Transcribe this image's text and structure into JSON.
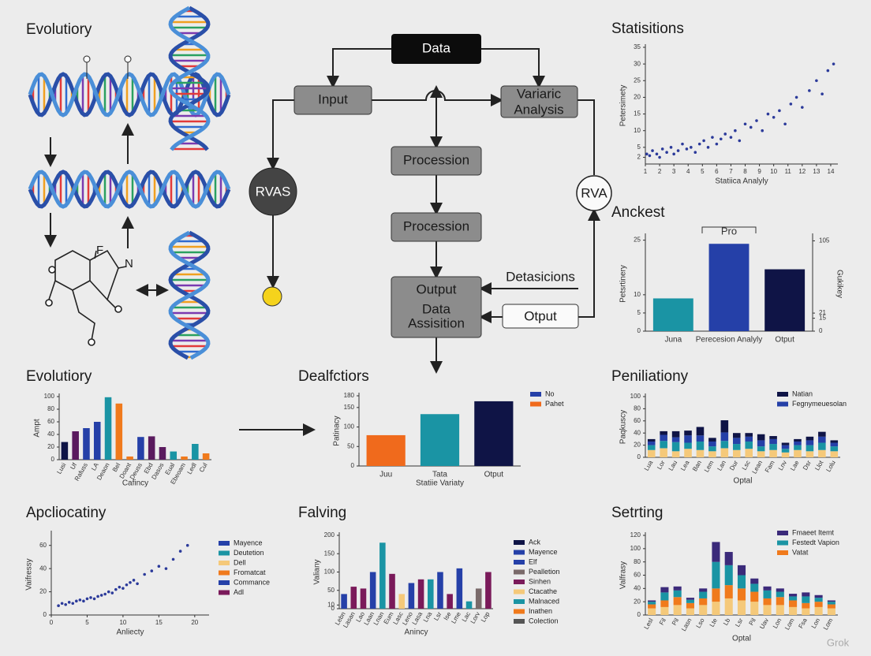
{
  "diagram": {
    "title": "Evolutiory",
    "atoms": [
      "F",
      "N"
    ],
    "nodes": [
      "Data",
      "Input",
      [
        "Variaric",
        "Analysis"
      ],
      "Procession",
      "Procession",
      [
        "Output",
        "Data",
        "Assisition"
      ],
      "Detasicions",
      "Otput",
      "RVAS",
      "RVA"
    ],
    "watermark": "Grok"
  },
  "chart_data": [
    {
      "type": "scatter",
      "title": "Statisitions",
      "x_label": "Statiica Analyly",
      "y_label": "Petersimety",
      "color": "#2b3a9a",
      "x": [
        1.1,
        1.3,
        1.5,
        1.8,
        2.0,
        2.2,
        2.5,
        2.8,
        3.0,
        3.3,
        3.6,
        3.9,
        4.2,
        4.5,
        4.8,
        5.1,
        5.4,
        5.7,
        6.0,
        6.3,
        6.6,
        7.0,
        7.3,
        7.6,
        8.0,
        8.4,
        8.8,
        9.2,
        9.6,
        10.0,
        10.4,
        10.8,
        11.2,
        11.6,
        12.0,
        12.5,
        13.0,
        13.4,
        13.8,
        14.2
      ],
      "values": [
        3,
        2.5,
        4,
        3,
        2,
        4.5,
        3.5,
        5,
        3,
        4,
        6,
        4.5,
        5,
        3.5,
        6,
        7,
        5,
        8,
        6,
        7.5,
        9,
        8,
        10,
        7,
        12,
        11,
        13,
        10,
        15,
        14,
        16,
        12,
        18,
        20,
        17,
        22,
        25,
        21,
        28,
        30
      ],
      "xlim": [
        1,
        14.5
      ],
      "xticks": [
        1,
        2,
        3,
        4,
        5,
        6,
        7,
        8,
        9,
        10,
        11,
        12,
        13,
        14
      ],
      "ylim": [
        0,
        35
      ],
      "yticks": [
        2,
        5,
        10,
        15,
        20,
        25,
        30,
        35
      ]
    },
    {
      "type": "bar",
      "title": "Anckest",
      "y_label": "Petsrtinery",
      "y2_label": "Gukikey",
      "annotation": "Pro",
      "categories": [
        "Juna",
        "Perecesion Analyly",
        "Otput"
      ],
      "values": [
        9,
        24,
        17
      ],
      "colors": [
        "#1a94a4",
        "#2540a8",
        "#0f1446"
      ],
      "ylim": [
        0,
        26
      ],
      "yticks": [
        0,
        5,
        10,
        25
      ],
      "y2lim": [
        0,
        110
      ],
      "y2ticks": [
        0,
        15,
        21,
        105
      ]
    },
    {
      "type": "bar",
      "title": "Evolutiory",
      "x_label": "Cafincy",
      "y_label": "Ampt",
      "categories": [
        "Lusi",
        "Uf",
        "Rafuss",
        "LA",
        "Deaon",
        "Bel",
        "Doant",
        "Deuss",
        "Ebd",
        "Dasos",
        "Eual",
        "Ebeoam",
        "Ledl",
        "Cul"
      ],
      "values": [
        28,
        45,
        50,
        60,
        99,
        89,
        5,
        36,
        37,
        20,
        13,
        5,
        25,
        10
      ],
      "colors": [
        "#0f1446",
        "#5a1a5e",
        "#2540a8",
        "#2540a8",
        "#1a94a4",
        "#f07a1c",
        "#f07a1c",
        "#2540a8",
        "#5a1a5e",
        "#5a1a5e",
        "#1a94a4",
        "#f07a1c",
        "#1a94a4",
        "#f07a1c"
      ],
      "ylim": [
        0,
        100
      ],
      "yticks": [
        0,
        20,
        40,
        60,
        80,
        100
      ]
    },
    {
      "type": "bar",
      "title": "Dealfctiors",
      "x_label": "Statiie Variaty",
      "y_label": "Patinacy",
      "categories": [
        "Juu",
        "Tata",
        "Otput"
      ],
      "values": [
        79,
        133,
        166
      ],
      "colors": [
        "#f06a1c",
        "#1a94a4",
        "#0f1446"
      ],
      "ylim": [
        0,
        180
      ],
      "yticks": [
        0,
        50,
        100,
        150,
        180
      ],
      "legend": [
        {
          "name": "No",
          "color": "#2540a8"
        },
        {
          "name": "Pahet",
          "color": "#f06a1c"
        }
      ]
    },
    {
      "type": "stacked_bar",
      "title": "Peniliationy",
      "x_label": "Optal",
      "y_label": "Paqkuscy",
      "categories": [
        "Lua",
        "Lor",
        "Lau",
        "Lea",
        "Ban",
        "Lem",
        "Lan",
        "Dur",
        "Lsc",
        "Lean",
        "Fam",
        "Lnv",
        "Lae",
        "Dsr",
        "Llot",
        "Lolu"
      ],
      "series": [
        {
          "color": "#f5c97a",
          "values": [
            12,
            15,
            10,
            14,
            12,
            10,
            15,
            12,
            14,
            10,
            12,
            8,
            12,
            10,
            12,
            10
          ]
        },
        {
          "color": "#1a94a4",
          "values": [
            8,
            12,
            15,
            10,
            14,
            8,
            12,
            10,
            12,
            8,
            10,
            6,
            8,
            10,
            12,
            8
          ]
        },
        {
          "name": "Fegnymeuesolan",
          "color": "#2540a8",
          "values": [
            6,
            10,
            8,
            12,
            10,
            8,
            14,
            10,
            8,
            10,
            8,
            6,
            6,
            8,
            10,
            6
          ]
        },
        {
          "name": "Natian",
          "color": "#0f1446",
          "values": [
            4,
            6,
            10,
            8,
            14,
            6,
            20,
            8,
            6,
            10,
            5,
            4,
            4,
            6,
            8,
            4
          ]
        }
      ],
      "ylim": [
        0,
        100
      ],
      "yticks": [
        0,
        20,
        40,
        60,
        80,
        100
      ]
    },
    {
      "type": "scatter",
      "title": "Apcliocatiny",
      "x_label": "Anliecty",
      "y_label": "Vaifressy",
      "color": "#2b3a9a",
      "x": [
        1,
        1.5,
        2,
        2.5,
        3,
        3.5,
        4,
        4.5,
        5,
        5.5,
        6,
        6.5,
        7,
        7.5,
        8,
        8.5,
        9,
        9.5,
        10,
        10.5,
        11,
        11.5,
        12,
        13,
        14,
        15,
        16,
        17,
        18,
        19
      ],
      "values": [
        8,
        10,
        9,
        11,
        10,
        12,
        13,
        12,
        14,
        15,
        14,
        16,
        17,
        18,
        20,
        19,
        22,
        24,
        23,
        26,
        28,
        30,
        27,
        35,
        38,
        42,
        40,
        48,
        55,
        60
      ],
      "xlim": [
        0,
        22
      ],
      "xticks": [
        0,
        5,
        10,
        15,
        20
      ],
      "ylim": [
        0,
        70
      ],
      "yticks": [
        0,
        20,
        40,
        60
      ],
      "legend": [
        {
          "name": "Mayence",
          "color": "#2540a8"
        },
        {
          "name": "Deutetion",
          "color": "#1a94a4"
        },
        {
          "name": "Dell",
          "color": "#f5c97a"
        },
        {
          "name": "Fromatcat",
          "color": "#f07a1c"
        },
        {
          "name": "Commance",
          "color": "#2540a8"
        },
        {
          "name": "Adl",
          "color": "#7a1a5a"
        }
      ]
    },
    {
      "type": "bar",
      "title": "Falving",
      "x_label": "Anincy",
      "y_label": "Valiany",
      "categories": [
        "Lebn",
        "Lasan",
        "Lao",
        "Laan",
        "Lnan",
        "Eum",
        "Lasc",
        "Leno",
        "Lasa",
        "Lna",
        "Lsr",
        "Ise",
        "Lme",
        "Lac",
        "Lorv",
        "Lop"
      ],
      "values": [
        40,
        60,
        55,
        100,
        180,
        95,
        40,
        70,
        80,
        80,
        100,
        40,
        110,
        20,
        55,
        100
      ],
      "colors": [
        "#2540a8",
        "#7a1a5a",
        "#7a1a5a",
        "#2540a8",
        "#1a94a4",
        "#7a1a5a",
        "#f5c97a",
        "#2540a8",
        "#7a1a5a",
        "#1a94a4",
        "#2540a8",
        "#7a1a5a",
        "#2540a8",
        "#1a94a4",
        "#7a6a6a",
        "#7a1a5a"
      ],
      "ylim": [
        0,
        200
      ],
      "yticks": [
        0,
        10,
        50,
        100,
        150,
        200
      ],
      "legend": [
        {
          "name": "Ack",
          "color": "#0f1446"
        },
        {
          "name": "Mayence",
          "color": "#2540a8"
        },
        {
          "name": "Elf",
          "color": "#2540a8"
        },
        {
          "name": "Pealletion",
          "color": "#7a6a6a"
        },
        {
          "name": "Sinhen",
          "color": "#7a1a5a"
        },
        {
          "name": "Ctacathe",
          "color": "#f5c97a"
        },
        {
          "name": "Malnaced",
          "color": "#1a94a4"
        },
        {
          "name": "Inathen",
          "color": "#f07a1c"
        },
        {
          "name": "Colection",
          "color": "#555555"
        }
      ]
    },
    {
      "type": "stacked_bar",
      "title": "Setrting",
      "x_label": "Optal",
      "y_label": "Valfrasy",
      "categories": [
        "Lesl",
        "Fil",
        "Pil",
        "Lasn",
        "Lso",
        "Lte",
        "Lb",
        "Lsr",
        "Pil",
        "Uav",
        "Lon",
        "Lom",
        "Fsa",
        "Lon",
        "Lom"
      ],
      "series": [
        {
          "color": "#f5c97a",
          "values": [
            10,
            12,
            15,
            10,
            15,
            20,
            25,
            22,
            20,
            15,
            15,
            12,
            10,
            12,
            10
          ]
        },
        {
          "name": "Vatat",
          "color": "#f07a1c",
          "values": [
            6,
            10,
            12,
            8,
            10,
            20,
            20,
            18,
            15,
            10,
            12,
            10,
            8,
            8,
            6
          ]
        },
        {
          "name": "Festedt Vapion",
          "color": "#1a94a4",
          "values": [
            4,
            12,
            10,
            5,
            10,
            40,
            30,
            20,
            12,
            12,
            8,
            6,
            10,
            6,
            4
          ]
        },
        {
          "name": "Fmaeet Itemt",
          "color": "#3b2a7a",
          "values": [
            2,
            8,
            6,
            3,
            5,
            30,
            20,
            15,
            8,
            6,
            5,
            4,
            6,
            4,
            2
          ]
        }
      ],
      "ylim": [
        0,
        120
      ],
      "yticks": [
        0,
        20,
        40,
        60,
        80,
        100,
        120
      ]
    }
  ]
}
